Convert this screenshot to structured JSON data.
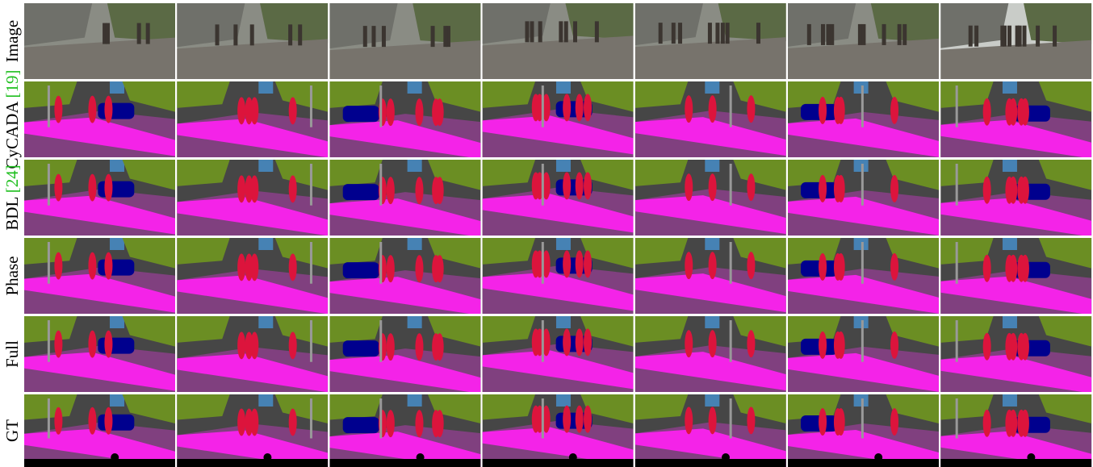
{
  "figure": {
    "rows": [
      {
        "label": "Image"
      },
      {
        "label": "CyCADA",
        "citation": "[19]"
      },
      {
        "label": "BDL",
        "citation": "[24]"
      },
      {
        "label": "Phase"
      },
      {
        "label": "Full"
      },
      {
        "label": "GT"
      }
    ]
  }
}
